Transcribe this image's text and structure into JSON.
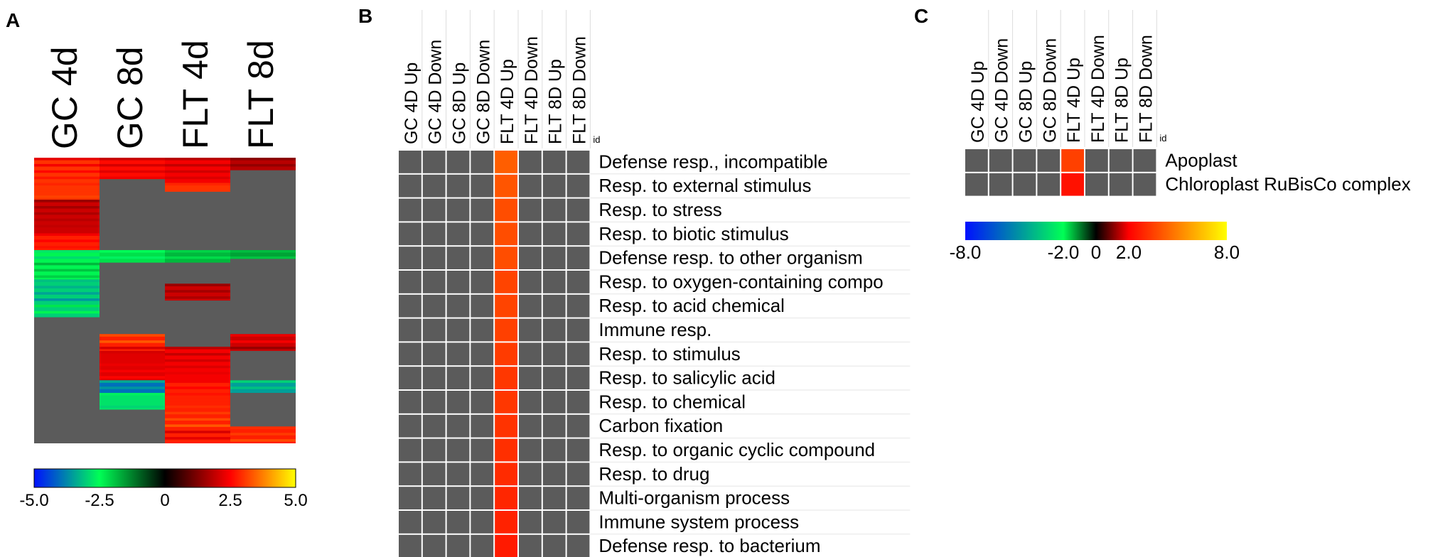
{
  "chart_data": [
    {
      "panel": "A",
      "type": "heatmap",
      "columns": [
        "GC 4d",
        "GC 8d",
        "FLT 4d",
        "FLT 8d"
      ],
      "colorbar": {
        "min": -5.0,
        "max": 5.0,
        "tick_labels": [
          "-5.0",
          "-2.5",
          "0",
          "2.5",
          "5.0"
        ],
        "tick_values": [
          -5.0,
          -2.5,
          0,
          2.5,
          5.0
        ],
        "colors": [
          "#0010ff",
          "#00ff55",
          "#000000",
          "#ff0000",
          "#ffff00"
        ]
      },
      "missing_color": "#5b5b5b",
      "n_rows": 136,
      "segments": [
        {
          "column": 0,
          "from": 0,
          "to": 20,
          "value": 3.0
        },
        {
          "column": 0,
          "from": 20,
          "to": 36,
          "value": 2.0
        },
        {
          "column": 0,
          "from": 36,
          "to": 44,
          "value": 2.8
        },
        {
          "column": 0,
          "from": 44,
          "to": 58,
          "value": -2.4
        },
        {
          "column": 0,
          "from": 58,
          "to": 76,
          "value": -3.0
        },
        {
          "column": 0,
          "from": 76,
          "to": 136,
          "value": null
        },
        {
          "column": 1,
          "from": 0,
          "to": 10,
          "value": 2.6
        },
        {
          "column": 1,
          "from": 10,
          "to": 44,
          "value": null
        },
        {
          "column": 1,
          "from": 44,
          "to": 50,
          "value": -2.2
        },
        {
          "column": 1,
          "from": 50,
          "to": 84,
          "value": null
        },
        {
          "column": 1,
          "from": 84,
          "to": 92,
          "value": 2.8
        },
        {
          "column": 1,
          "from": 92,
          "to": 106,
          "value": 2.2
        },
        {
          "column": 1,
          "from": 106,
          "to": 112,
          "value": -4.0
        },
        {
          "column": 1,
          "from": 112,
          "to": 120,
          "value": -2.8
        },
        {
          "column": 1,
          "from": 120,
          "to": 136,
          "value": null
        },
        {
          "column": 2,
          "from": 0,
          "to": 12,
          "value": 2.4
        },
        {
          "column": 2,
          "from": 12,
          "to": 16,
          "value": 3.0
        },
        {
          "column": 2,
          "from": 16,
          "to": 44,
          "value": null
        },
        {
          "column": 2,
          "from": 44,
          "to": 50,
          "value": -1.8
        },
        {
          "column": 2,
          "from": 50,
          "to": 60,
          "value": null
        },
        {
          "column": 2,
          "from": 60,
          "to": 68,
          "value": 2.0
        },
        {
          "column": 2,
          "from": 68,
          "to": 90,
          "value": null
        },
        {
          "column": 2,
          "from": 90,
          "to": 106,
          "value": 2.4
        },
        {
          "column": 2,
          "from": 106,
          "to": 136,
          "value": 2.8
        },
        {
          "column": 3,
          "from": 0,
          "to": 6,
          "value": 1.8
        },
        {
          "column": 3,
          "from": 6,
          "to": 44,
          "value": null
        },
        {
          "column": 3,
          "from": 44,
          "to": 48,
          "value": -1.6
        },
        {
          "column": 3,
          "from": 48,
          "to": 84,
          "value": null
        },
        {
          "column": 3,
          "from": 84,
          "to": 92,
          "value": 2.0
        },
        {
          "column": 3,
          "from": 92,
          "to": 106,
          "value": null
        },
        {
          "column": 3,
          "from": 106,
          "to": 112,
          "value": -3.5
        },
        {
          "column": 3,
          "from": 112,
          "to": 128,
          "value": null
        },
        {
          "column": 3,
          "from": 128,
          "to": 136,
          "value": 2.8
        }
      ]
    },
    {
      "panel": "B",
      "type": "heatmap",
      "columns": [
        "GC 4D Up",
        "GC 4D Down",
        "GC 8D Up",
        "GC 8D Down",
        "FLT 4D Up",
        "FLT 4D Down",
        "FLT 8D Up",
        "FLT 8D Down"
      ],
      "id_label": "id",
      "rows": [
        "Defense resp., incompatible",
        "Resp. to external stimulus",
        "Resp. to stress",
        "Resp. to biotic stimulus",
        "Defense resp. to other organism",
        "Resp. to oxygen-containing compo",
        "Resp. to acid chemical",
        "Immune resp.",
        "Resp. to stimulus",
        "Resp. to salicylic acid",
        "Resp. to chemical",
        "Carbon fixation",
        "Resp. to organic cyclic compound",
        "Resp. to drug",
        "Multi-organism process",
        "Immune system process",
        "Defense resp. to bacterium"
      ],
      "values": [
        [
          null,
          null,
          null,
          null,
          4.2,
          null,
          null,
          null
        ],
        [
          null,
          null,
          null,
          null,
          4.0,
          null,
          null,
          null
        ],
        [
          null,
          null,
          null,
          null,
          3.8,
          null,
          null,
          null
        ],
        [
          null,
          null,
          null,
          null,
          3.8,
          null,
          null,
          null
        ],
        [
          null,
          null,
          null,
          null,
          3.8,
          null,
          null,
          null
        ],
        [
          null,
          null,
          null,
          null,
          3.6,
          null,
          null,
          null
        ],
        [
          null,
          null,
          null,
          null,
          3.6,
          null,
          null,
          null
        ],
        [
          null,
          null,
          null,
          null,
          3.5,
          null,
          null,
          null
        ],
        [
          null,
          null,
          null,
          null,
          3.4,
          null,
          null,
          null
        ],
        [
          null,
          null,
          null,
          null,
          3.3,
          null,
          null,
          null
        ],
        [
          null,
          null,
          null,
          null,
          3.3,
          null,
          null,
          null
        ],
        [
          null,
          null,
          null,
          null,
          3.2,
          null,
          null,
          null
        ],
        [
          null,
          null,
          null,
          null,
          3.1,
          null,
          null,
          null
        ],
        [
          null,
          null,
          null,
          null,
          3.0,
          null,
          null,
          null
        ],
        [
          null,
          null,
          null,
          null,
          2.9,
          null,
          null,
          null
        ],
        [
          null,
          null,
          null,
          null,
          2.8,
          null,
          null,
          null
        ],
        [
          null,
          null,
          null,
          null,
          2.6,
          null,
          null,
          null
        ]
      ]
    },
    {
      "panel": "C",
      "type": "heatmap",
      "columns": [
        "GC 4D Up",
        "GC 4D Down",
        "GC 8D Up",
        "GC 8D Down",
        "FLT 4D Up",
        "FLT 4D Down",
        "FLT 8D Up",
        "FLT 8D Down"
      ],
      "id_label": "id",
      "rows": [
        "Apoplast",
        "Chloroplast RuBisCo complex"
      ],
      "values": [
        [
          null,
          null,
          null,
          null,
          3.5,
          null,
          null,
          null
        ],
        [
          null,
          null,
          null,
          null,
          2.4,
          null,
          null,
          null
        ]
      ],
      "colorbar": {
        "min": -8.0,
        "max": 8.0,
        "tick_labels": [
          "-8.0",
          "-2.0",
          "0",
          "2.0",
          "8.0"
        ],
        "tick_values": [
          -8.0,
          -2.0,
          0,
          2.0,
          8.0
        ],
        "colors": [
          "#0010ff",
          "#00ff55",
          "#000000",
          "#ff0000",
          "#ffff00"
        ]
      }
    }
  ],
  "panel_labels": [
    "A",
    "B",
    "C"
  ]
}
